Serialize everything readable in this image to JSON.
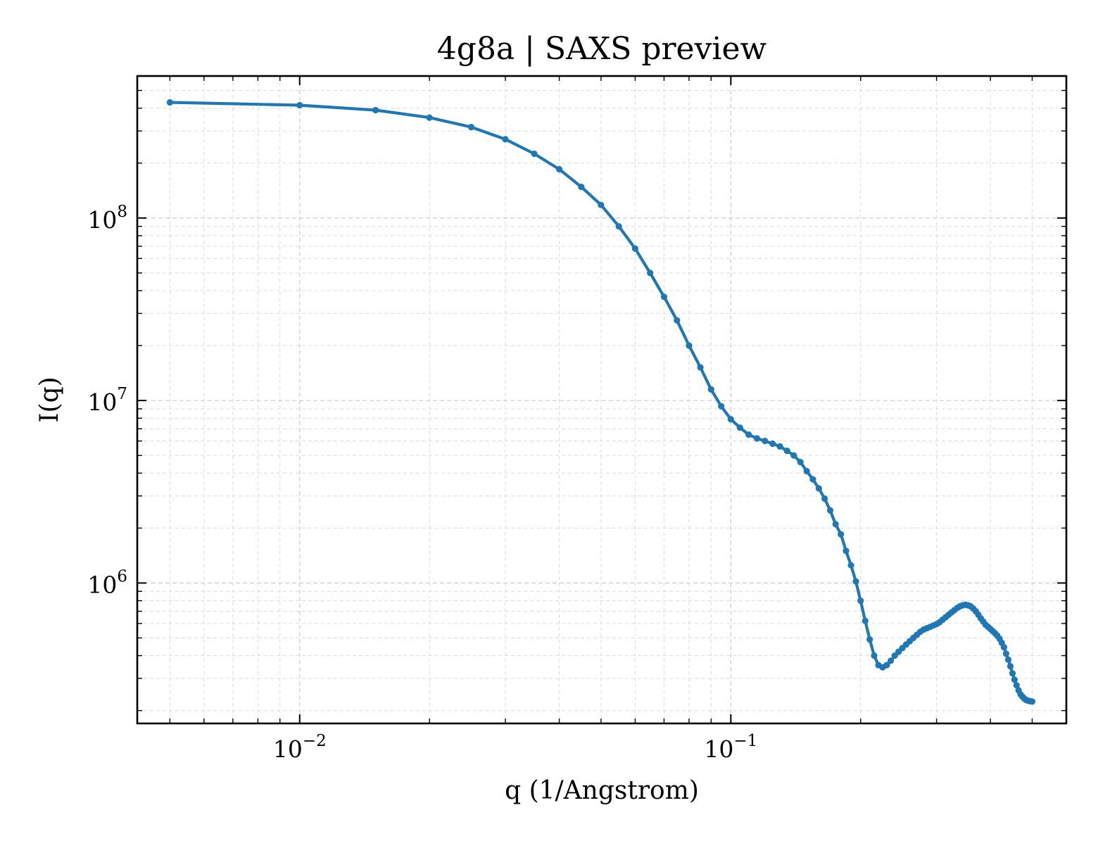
{
  "chart_data": {
    "type": "line",
    "title": "4g8a | SAXS preview",
    "xlabel": "q (1/Angstrom)",
    "ylabel": "I(q)",
    "xscale": "log",
    "yscale": "log",
    "xlim": [
      0.0042,
      0.6
    ],
    "ylim": [
      170000,
      600000000
    ],
    "grid": true,
    "x_ticks": [
      {
        "base": "10",
        "exp": "−2",
        "value": 0.01
      },
      {
        "base": "10",
        "exp": "−1",
        "value": 0.1
      }
    ],
    "y_ticks": [
      {
        "base": "10",
        "exp": "6",
        "value": 1000000
      },
      {
        "base": "10",
        "exp": "7",
        "value": 10000000
      },
      {
        "base": "10",
        "exp": "8",
        "value": 100000000
      }
    ],
    "colors": {
      "series": "#1f77b4"
    },
    "series": [
      {
        "x": [
          0.005,
          0.01,
          0.015,
          0.02,
          0.025,
          0.03,
          0.035,
          0.04,
          0.045,
          0.05,
          0.055,
          0.06,
          0.065,
          0.07,
          0.075,
          0.08,
          0.085,
          0.09,
          0.095,
          0.1,
          0.105,
          0.11,
          0.115,
          0.12,
          0.125,
          0.13,
          0.135,
          0.14,
          0.145,
          0.15,
          0.155,
          0.16,
          0.165,
          0.17,
          0.175,
          0.18,
          0.185,
          0.19,
          0.195,
          0.2,
          0.205,
          0.21,
          0.215,
          0.22,
          0.225,
          0.23,
          0.235,
          0.24,
          0.245,
          0.25,
          0.255,
          0.26,
          0.265,
          0.27,
          0.275,
          0.28,
          0.285,
          0.29,
          0.295,
          0.3,
          0.305,
          0.31,
          0.315,
          0.32,
          0.325,
          0.33,
          0.335,
          0.34,
          0.345,
          0.35,
          0.355,
          0.36,
          0.365,
          0.37,
          0.375,
          0.38,
          0.385,
          0.39,
          0.395,
          0.4,
          0.405,
          0.41,
          0.415,
          0.42,
          0.425,
          0.43,
          0.435,
          0.44,
          0.445,
          0.45,
          0.455,
          0.46,
          0.465,
          0.47,
          0.475,
          0.48,
          0.485,
          0.49,
          0.495,
          0.5
        ],
        "values": [
          430000000,
          415000000,
          390000000,
          355000000,
          315000000,
          270000000,
          225000000,
          185000000,
          148000000,
          118000000,
          90000000,
          68000000,
          50000000,
          37000000,
          27500000,
          20000000,
          15200000,
          11500000,
          9300000,
          7900000,
          7100000,
          6500000,
          6200000,
          6000000,
          5800000,
          5600000,
          5300000,
          5000000,
          4600000,
          4100000,
          3700000,
          3300000,
          2900000,
          2500000,
          2100000,
          1850000,
          1500000,
          1250000,
          1020000,
          800000,
          620000,
          490000,
          400000,
          355000,
          345000,
          355000,
          375000,
          400000,
          420000,
          440000,
          460000,
          480000,
          500000,
          520000,
          540000,
          555000,
          565000,
          575000,
          585000,
          595000,
          610000,
          630000,
          650000,
          670000,
          690000,
          710000,
          730000,
          745000,
          755000,
          760000,
          755000,
          745000,
          725000,
          700000,
          670000,
          640000,
          615000,
          590000,
          575000,
          560000,
          545000,
          530000,
          515000,
          495000,
          470000,
          445000,
          410000,
          380000,
          350000,
          320000,
          295000,
          275000,
          258000,
          245000,
          238000,
          232000,
          228000,
          226000,
          225000,
          224000
        ]
      }
    ]
  }
}
